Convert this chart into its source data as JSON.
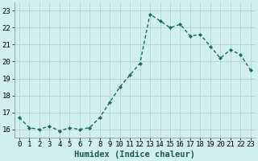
{
  "x": [
    0,
    1,
    2,
    3,
    4,
    5,
    6,
    7,
    8,
    9,
    10,
    11,
    12,
    13,
    14,
    15,
    16,
    17,
    18,
    19,
    20,
    21,
    22,
    23
  ],
  "y": [
    16.7,
    16.1,
    16.0,
    16.2,
    15.9,
    16.1,
    16.0,
    16.1,
    16.7,
    17.6,
    18.5,
    19.2,
    19.9,
    22.8,
    22.4,
    22.0,
    22.2,
    21.5,
    21.6,
    20.9,
    20.2,
    20.7,
    20.4,
    19.5
  ],
  "line_color": "#1a6b5a",
  "marker": "D",
  "marker_size": 2.0,
  "bg_color": "#cff0ec",
  "grid_color": "#b8d8d4",
  "xlabel": "Humidex (Indice chaleur)",
  "ylabel": "",
  "xlim": [
    -0.5,
    23.5
  ],
  "ylim": [
    15.5,
    23.5
  ],
  "yticks": [
    16,
    17,
    18,
    19,
    20,
    21,
    22,
    23
  ],
  "xticks": [
    0,
    1,
    2,
    3,
    4,
    5,
    6,
    7,
    8,
    9,
    10,
    11,
    12,
    13,
    14,
    15,
    16,
    17,
    18,
    19,
    20,
    21,
    22,
    23
  ],
  "tick_fontsize": 6.5,
  "xlabel_fontsize": 7.5,
  "line_width": 1.0
}
